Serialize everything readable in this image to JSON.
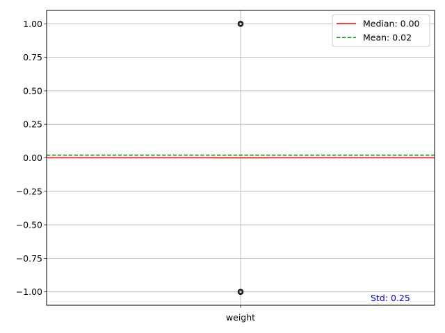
{
  "chart_data": {
    "type": "box",
    "categories": [
      "weight"
    ],
    "ylim": [
      -1.1,
      1.1
    ],
    "yticks": [
      1.0,
      0.75,
      0.5,
      0.25,
      0.0,
      -0.25,
      -0.5,
      -0.75,
      -1.0
    ],
    "ytick_labels": [
      "1.00",
      "0.75",
      "0.50",
      "0.25",
      "0.00",
      "−0.25",
      "−0.50",
      "−0.75",
      "−1.00"
    ],
    "grid": true,
    "box": {
      "median": 0.0,
      "q1": 0.0,
      "q3": 0.0,
      "whisker_low": 0.0,
      "whisker_high": 0.0
    },
    "outliers": [
      1.0,
      -1.0
    ],
    "reference_lines": [
      {
        "name": "Median: 0.00",
        "value": 0.0,
        "color": "#ff0000",
        "style": "solid"
      },
      {
        "name": "Mean: 0.02",
        "value": 0.02,
        "color": "#008000",
        "style": "dashed"
      }
    ],
    "legend": {
      "placement": "top-right"
    },
    "annotation": {
      "text": "Std: 0.25",
      "color": "#0000ff"
    }
  }
}
